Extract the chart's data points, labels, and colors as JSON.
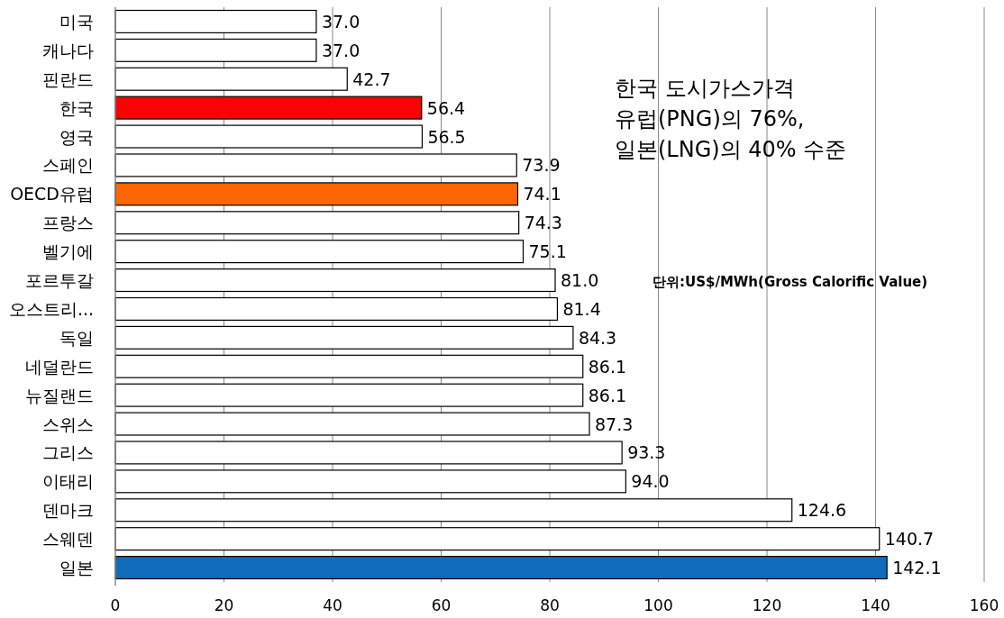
{
  "chart_data": {
    "type": "bar",
    "orientation": "horizontal",
    "categories": [
      "미국",
      "캐나다",
      "핀란드",
      "한국",
      "영국",
      "스페인",
      "OECD유럽",
      "프랑스",
      "벨기에",
      "포르투갈",
      "오스트리...",
      "독일",
      "네덜란드",
      "뉴질랜드",
      "스위스",
      "그리스",
      "이태리",
      "덴마크",
      "스웨덴",
      "일본"
    ],
    "values": [
      37.0,
      37.0,
      42.7,
      56.4,
      56.5,
      73.9,
      74.1,
      74.3,
      75.1,
      81.0,
      81.4,
      84.3,
      86.1,
      86.1,
      87.3,
      93.3,
      94.0,
      124.6,
      140.7,
      142.1
    ],
    "value_labels": [
      "37.0",
      "37.0",
      "42.7",
      "56.4",
      "56.5",
      "73.9",
      "74.1",
      "74.3",
      "75.1",
      "81.0",
      "81.4",
      "84.3",
      "86.1",
      "86.1",
      "87.3",
      "93.3",
      "94.0",
      "124.6",
      "140.7",
      "142.1"
    ],
    "colors": [
      "#ffffff",
      "#ffffff",
      "#ffffff",
      "#ff0000",
      "#ffffff",
      "#ffffff",
      "#ff6600",
      "#ffffff",
      "#ffffff",
      "#ffffff",
      "#ffffff",
      "#ffffff",
      "#ffffff",
      "#ffffff",
      "#ffffff",
      "#ffffff",
      "#ffffff",
      "#ffffff",
      "#ffffff",
      "#0f6cbd"
    ],
    "xlim": [
      0,
      160
    ],
    "xticks": [
      0,
      20,
      40,
      60,
      80,
      100,
      120,
      140,
      160
    ],
    "grid": "x",
    "annotations": [
      "한국 도시가스가격\n유럽(PNG)의 76%,\n일본(LNG)의 40% 수준",
      "**단위:US$/MWh(Gross Calorific Value)**"
    ]
  }
}
